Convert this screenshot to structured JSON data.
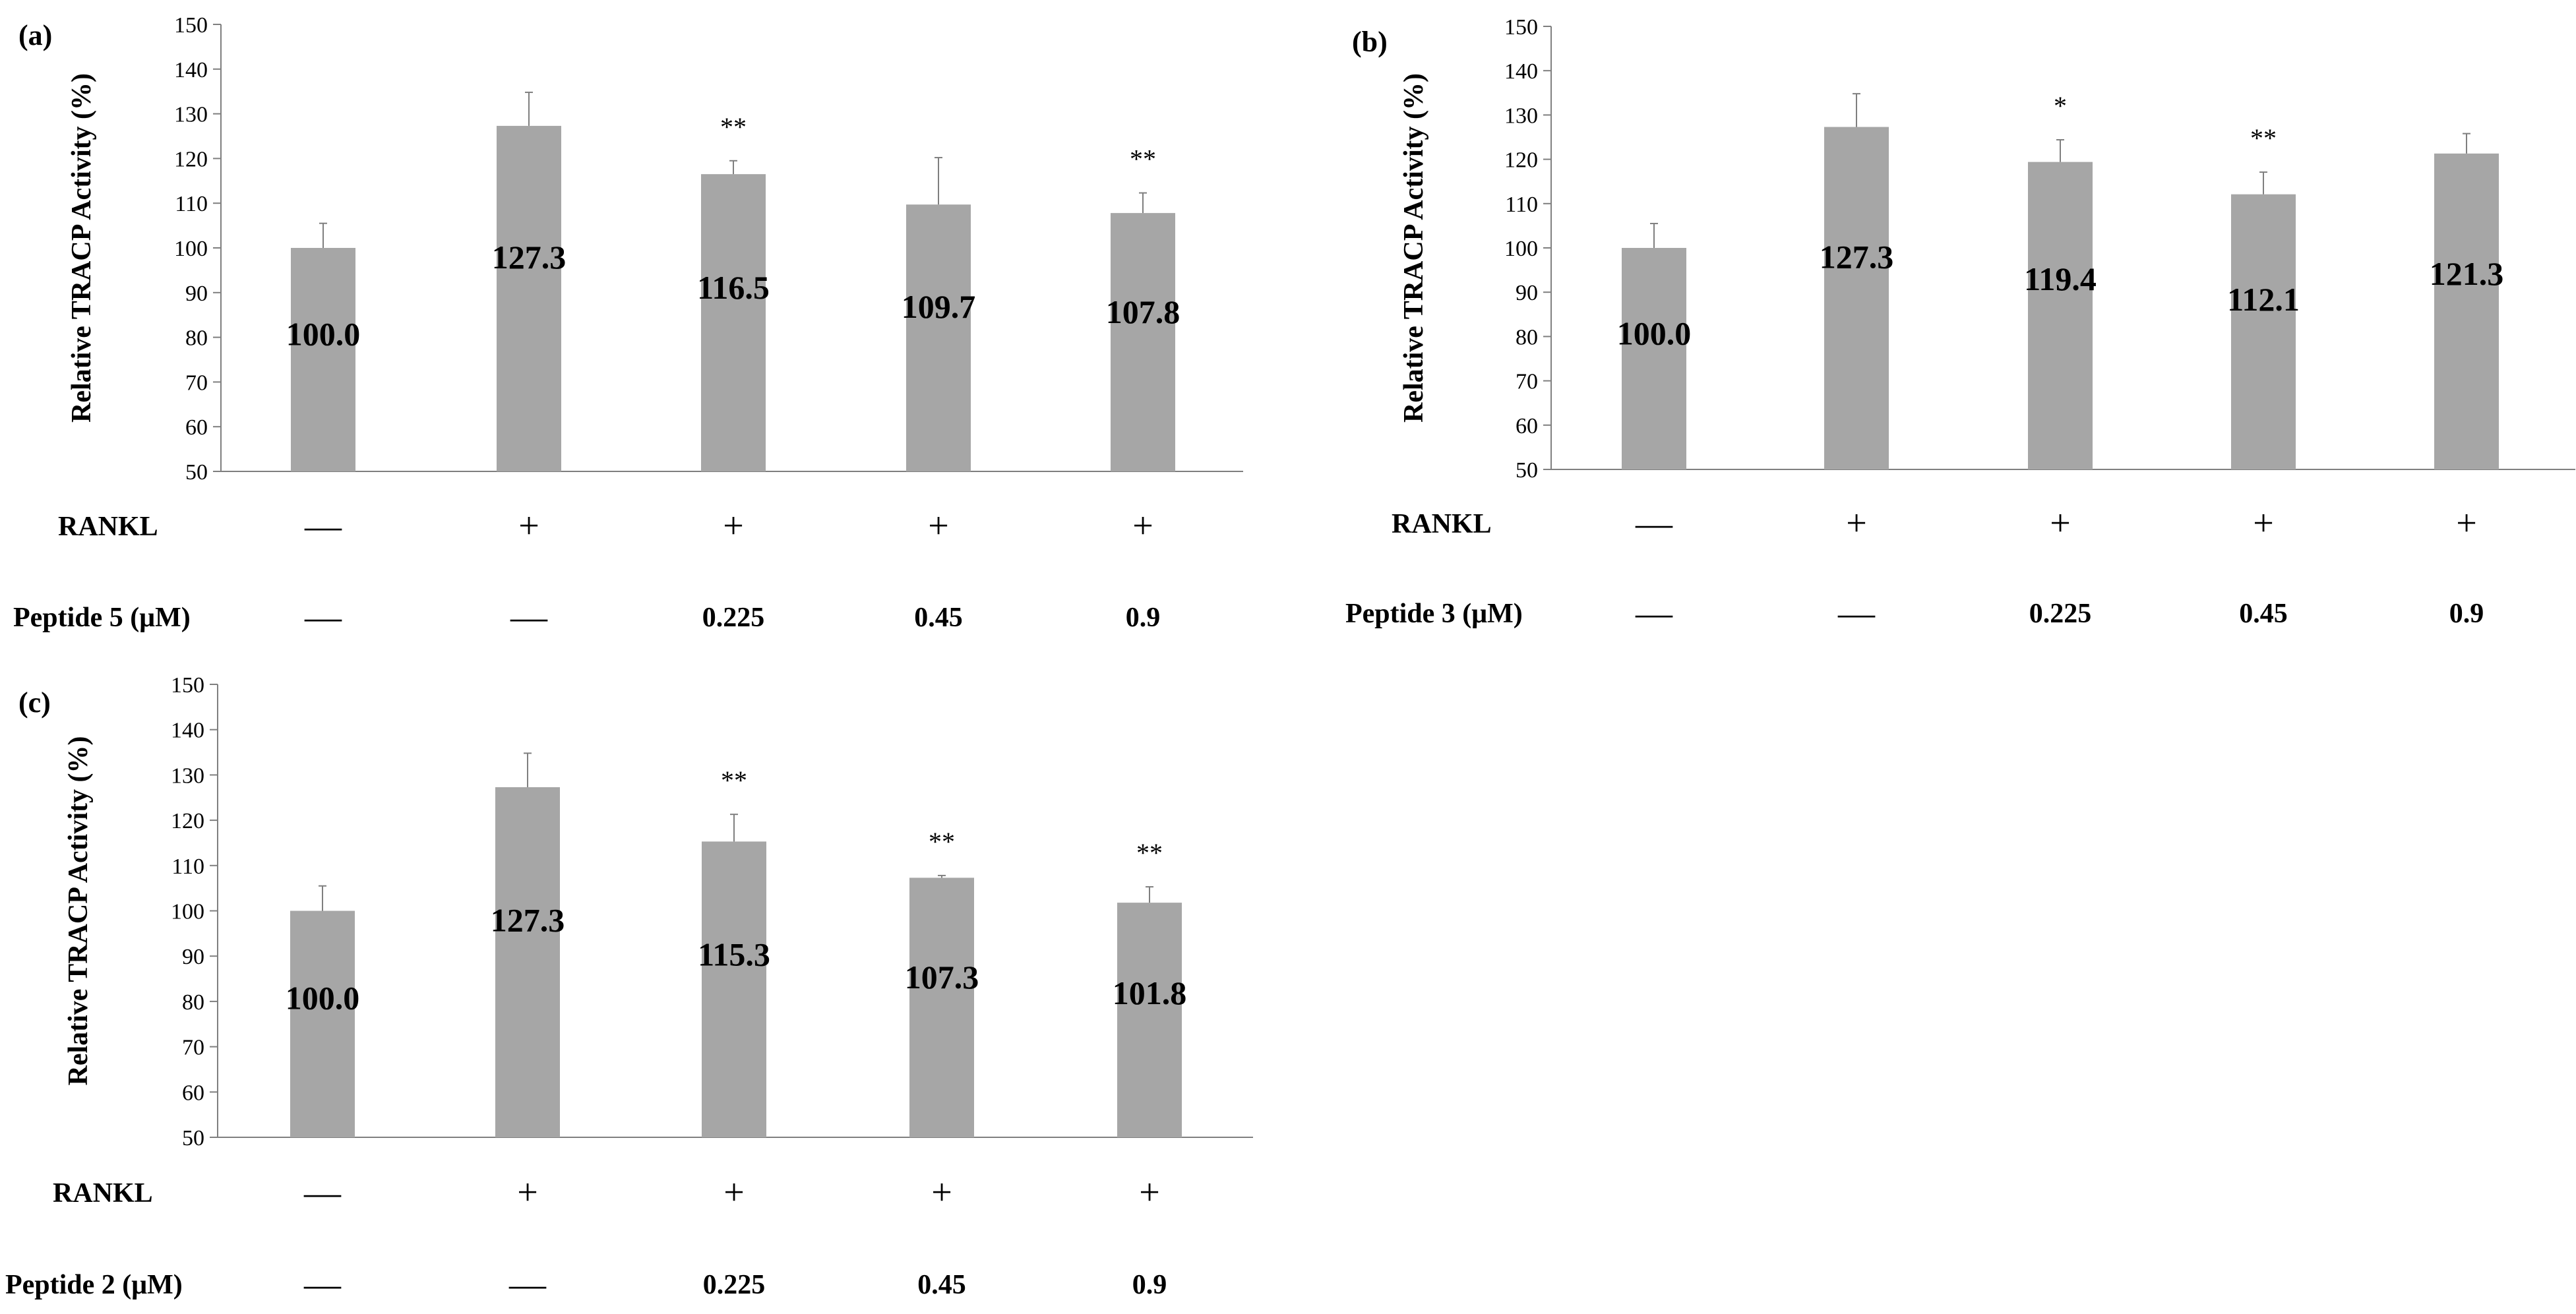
{
  "chart_data": [
    {
      "type": "bar",
      "panel": "(a)",
      "ylabel": "Relative TRACP Activity (%)",
      "ylim": [
        50,
        150
      ],
      "yticks": [
        "50",
        "60",
        "70",
        "80",
        "90",
        "100",
        "110",
        "120",
        "130",
        "140",
        "150"
      ],
      "values": [
        100.0,
        127.3,
        116.5,
        109.7,
        107.8
      ],
      "value_labels": [
        "100.0",
        "127.3",
        "116.5",
        "109.7",
        "107.8"
      ],
      "errors": [
        5.5,
        7.5,
        3.0,
        10.5,
        4.5
      ],
      "significance": [
        "",
        "",
        "**",
        "",
        "**"
      ],
      "rows": [
        {
          "name": "RANKL",
          "values": [
            "—",
            "+",
            "+",
            "+",
            "+"
          ]
        },
        {
          "name": "Peptide 5 (μM)",
          "values": [
            "—",
            "—",
            "0.225",
            "0.45",
            "0.9"
          ]
        }
      ]
    },
    {
      "type": "bar",
      "panel": "(b)",
      "ylabel": "Relative TRACP Activity (%)",
      "ylim": [
        50,
        150
      ],
      "yticks": [
        "50",
        "60",
        "70",
        "80",
        "90",
        "100",
        "110",
        "120",
        "130",
        "140",
        "150"
      ],
      "values": [
        100.0,
        127.3,
        119.4,
        112.1,
        121.3
      ],
      "value_labels": [
        "100.0",
        "127.3",
        "119.4",
        "112.1",
        "121.3"
      ],
      "errors": [
        5.5,
        7.5,
        5.0,
        5.0,
        4.5
      ],
      "significance": [
        "",
        "",
        "*",
        "**",
        ""
      ],
      "rows": [
        {
          "name": "RANKL",
          "values": [
            "—",
            "+",
            "+",
            "+",
            "+"
          ]
        },
        {
          "name": "Peptide 3 (μM)",
          "values": [
            "—",
            "—",
            "0.225",
            "0.45",
            "0.9"
          ]
        }
      ]
    },
    {
      "type": "bar",
      "panel": "(c)",
      "ylabel": "Relative TRACP Activity (%)",
      "ylim": [
        50,
        150
      ],
      "yticks": [
        "50",
        "60",
        "70",
        "80",
        "90",
        "100",
        "110",
        "120",
        "130",
        "140",
        "150"
      ],
      "values": [
        100.0,
        127.3,
        115.3,
        107.3,
        101.8
      ],
      "value_labels": [
        "100.0",
        "127.3",
        "115.3",
        "107.3",
        "101.8"
      ],
      "errors": [
        5.5,
        7.5,
        6.0,
        0.5,
        3.5
      ],
      "significance": [
        "",
        "",
        "**",
        "**",
        "**"
      ],
      "rows": [
        {
          "name": "RANKL",
          "values": [
            "—",
            "+",
            "+",
            "+",
            "+"
          ]
        },
        {
          "name": "Peptide 2 (μM)",
          "values": [
            "—",
            "—",
            "0.225",
            "0.45",
            "0.9"
          ]
        }
      ]
    }
  ],
  "colors": {
    "bar": "#a6a6a6",
    "axis": "#7f7f7f",
    "text": "#000000"
  }
}
